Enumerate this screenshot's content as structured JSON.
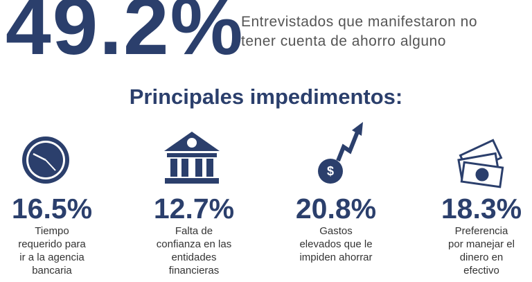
{
  "headline": {
    "value": "49.2%",
    "text_lines": [
      "Entrevistados que manifestaron no",
      "tener cuenta de ahorro alguno"
    ]
  },
  "section_title": "Principales impedimentos:",
  "items": [
    {
      "value": "16.5%",
      "lines": [
        "Tiempo",
        "requerido para",
        "ir a la agencia",
        "bancaria"
      ]
    },
    {
      "value": "12.7%",
      "lines": [
        "Falta de",
        "confianza en las",
        "entidades",
        "financieras"
      ]
    },
    {
      "value": "20.8%",
      "lines": [
        "Gastos",
        "elevados que le",
        "impiden ahorrar"
      ]
    },
    {
      "value": "18.3%",
      "lines": [
        "Preferencia",
        "por manejar el",
        "dinero en",
        "efectivo"
      ]
    }
  ]
}
